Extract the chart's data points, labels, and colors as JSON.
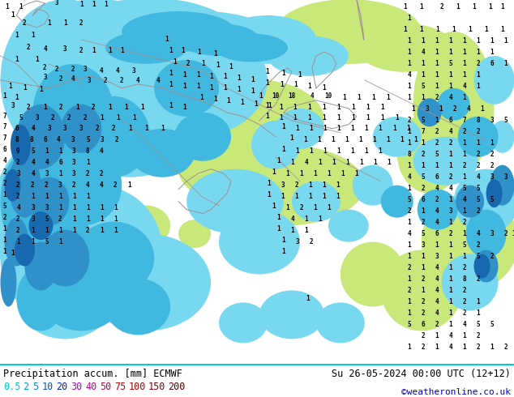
{
  "title_left": "Precipitation accum. [mm] ECMWF",
  "title_right": "Su 26-05-2024 00:00 UTC (12+12)",
  "credit": "©weatheronline.co.uk",
  "legend_values": [
    "0.5",
    "2",
    "5",
    "10",
    "20",
    "30",
    "40",
    "50",
    "75",
    "100",
    "150",
    "200"
  ],
  "legend_text_colors": [
    "#00cccc",
    "#00aacc",
    "#0088cc",
    "#0055cc",
    "#0022cc",
    "#aa00cc",
    "#cc0099",
    "#cc0044",
    "#cc0000",
    "#aa0000",
    "#880000",
    "#550000"
  ],
  "bg_color": "#e0e8e0",
  "sea_color": "#d8d8d8",
  "land_color": "#e8e8e8",
  "precip_light_green": "#c8e87a",
  "precip_cyan_light": "#78d8f0",
  "precip_cyan_mid": "#40b8e0",
  "precip_blue": "#3090c8",
  "precip_blue_dark": "#1868b0",
  "border_color": "#a09090",
  "number_color": "#000000",
  "bottom_bg": "#ffffff",
  "separator_color": "#00cccc"
}
